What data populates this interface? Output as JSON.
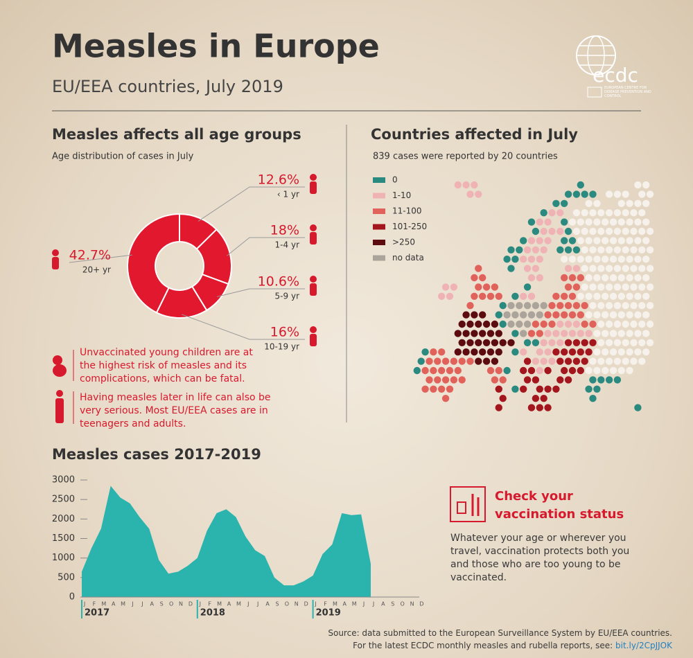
{
  "header": {
    "title": "Measles in Europe",
    "subtitle": "EU/EEA countries, July 2019",
    "logo": "ecdc",
    "logo_caption": "EUROPEAN CENTRE FOR DISEASE PREVENTION AND CONTROL"
  },
  "chart_data": [
    {
      "type": "donut",
      "title": "Measles affects all age groups",
      "subtitle": "Age distribution of cases in July",
      "categories": [
        "‹ 1 yr",
        "1-4 yr",
        "5-9 yr",
        "10-19 yr",
        "20+ yr"
      ],
      "values": [
        12.6,
        18,
        10.6,
        16,
        42.7
      ],
      "value_labels": [
        "12.6%",
        "18%",
        "10.6%",
        "16%",
        "42.7%"
      ],
      "color": "#e2192e"
    },
    {
      "type": "area",
      "title": "Measles cases 2017-2019",
      "categories": [
        "J",
        "F",
        "M",
        "A",
        "M",
        "J",
        "J",
        "A",
        "S",
        "O",
        "N",
        "D",
        "J",
        "F",
        "M",
        "A",
        "M",
        "J",
        "J",
        "A",
        "S",
        "O",
        "N",
        "D",
        "J",
        "F",
        "M",
        "A",
        "M",
        "J",
        "J",
        "A",
        "S",
        "O",
        "N",
        "D"
      ],
      "year_labels": [
        "2017",
        "2018",
        "2019"
      ],
      "values": [
        650,
        1250,
        1750,
        2850,
        2550,
        2400,
        2050,
        1750,
        950,
        600,
        650,
        800,
        1000,
        1700,
        2150,
        2250,
        2050,
        1550,
        1200,
        1050,
        500,
        300,
        300,
        400,
        550,
        1100,
        1350,
        2150,
        2100,
        2120,
        850,
        null,
        null,
        null,
        null,
        null
      ],
      "color": "#2bb3ae",
      "ylim": [
        0,
        3000
      ],
      "yticks": [
        0,
        500,
        1000,
        1500,
        2000,
        2500,
        3000
      ]
    }
  ],
  "map": {
    "title": "Countries affected in July",
    "subtitle": "839 cases were reported by 20 countries",
    "legend": [
      {
        "label": "0",
        "color": "#2a8a80"
      },
      {
        "label": "1-10",
        "color": "#f0b3b5"
      },
      {
        "label": "11-100",
        "color": "#e0625b"
      },
      {
        "label": "101-250",
        "color": "#a3161d"
      },
      {
        "label": ">250",
        "color": "#5c0b0f"
      },
      {
        "label": "no data",
        "color": "#aaa49b"
      }
    ]
  },
  "notes": [
    "Unvaccinated young children are at the highest risk of measles and its complications, which can be fatal.",
    "Having measles later in life can also be very serious. Most EU/EEA cases are in teenagers and adults."
  ],
  "callout": {
    "title": "Check your vaccination status",
    "text": "Whatever your age or wherever you travel, vaccination protects both you and those who are too young to be vaccinated."
  },
  "source": {
    "text": "Source: data submitted to the European Surveillance System by EU/EEA countries.",
    "text2": "For the latest ECDC monthly measles and rubella reports, see:",
    "link": "bit.ly/2CpJJOK"
  }
}
